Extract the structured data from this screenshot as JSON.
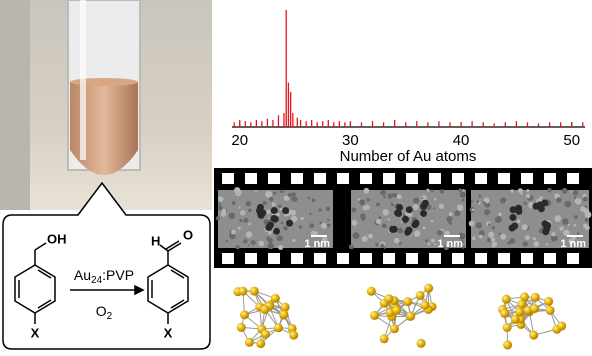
{
  "chemistry": {
    "reactant_group": "OH",
    "reactant_substituent": "X",
    "catalyst": {
      "main": "Au",
      "subscript": "24",
      "rest": ":PVP"
    },
    "oxidant": {
      "main": "O",
      "subscript": "2"
    },
    "product_group_h": "H",
    "product_group_o": "O",
    "product_substituent": "X"
  },
  "chart_data": {
    "type": "stem",
    "xlabel": "Number of Au atoms",
    "color": "#e8141c",
    "xlim": [
      19.3,
      51.2
    ],
    "xticks": [
      20,
      30,
      40,
      50
    ],
    "ylim": [
      0,
      100
    ],
    "x": [
      19.5,
      20,
      20.5,
      21,
      21.5,
      22,
      22.5,
      23,
      23.5,
      24,
      24.2,
      24.4,
      24.6,
      24.8,
      25.2,
      25.5,
      26,
      26.5,
      27,
      27.5,
      28,
      28.5,
      29,
      29.5,
      30,
      31,
      32,
      33,
      34,
      35,
      36,
      37,
      38,
      39,
      40,
      41,
      42,
      43,
      44,
      45,
      46,
      47,
      48,
      49,
      50,
      51
    ],
    "values": [
      4,
      6,
      5,
      4,
      6,
      5,
      7,
      6,
      10,
      12,
      100,
      38,
      30,
      12,
      8,
      6,
      5,
      6,
      4,
      5,
      6,
      4,
      5,
      4,
      5,
      4,
      5,
      4,
      6,
      4,
      5,
      4,
      5,
      4,
      4,
      5,
      4,
      3,
      4,
      5,
      4,
      3,
      4,
      4,
      3,
      4
    ]
  },
  "film": {
    "scale_labels": [
      "1 nm",
      "1 nm",
      "1 nm"
    ]
  }
}
